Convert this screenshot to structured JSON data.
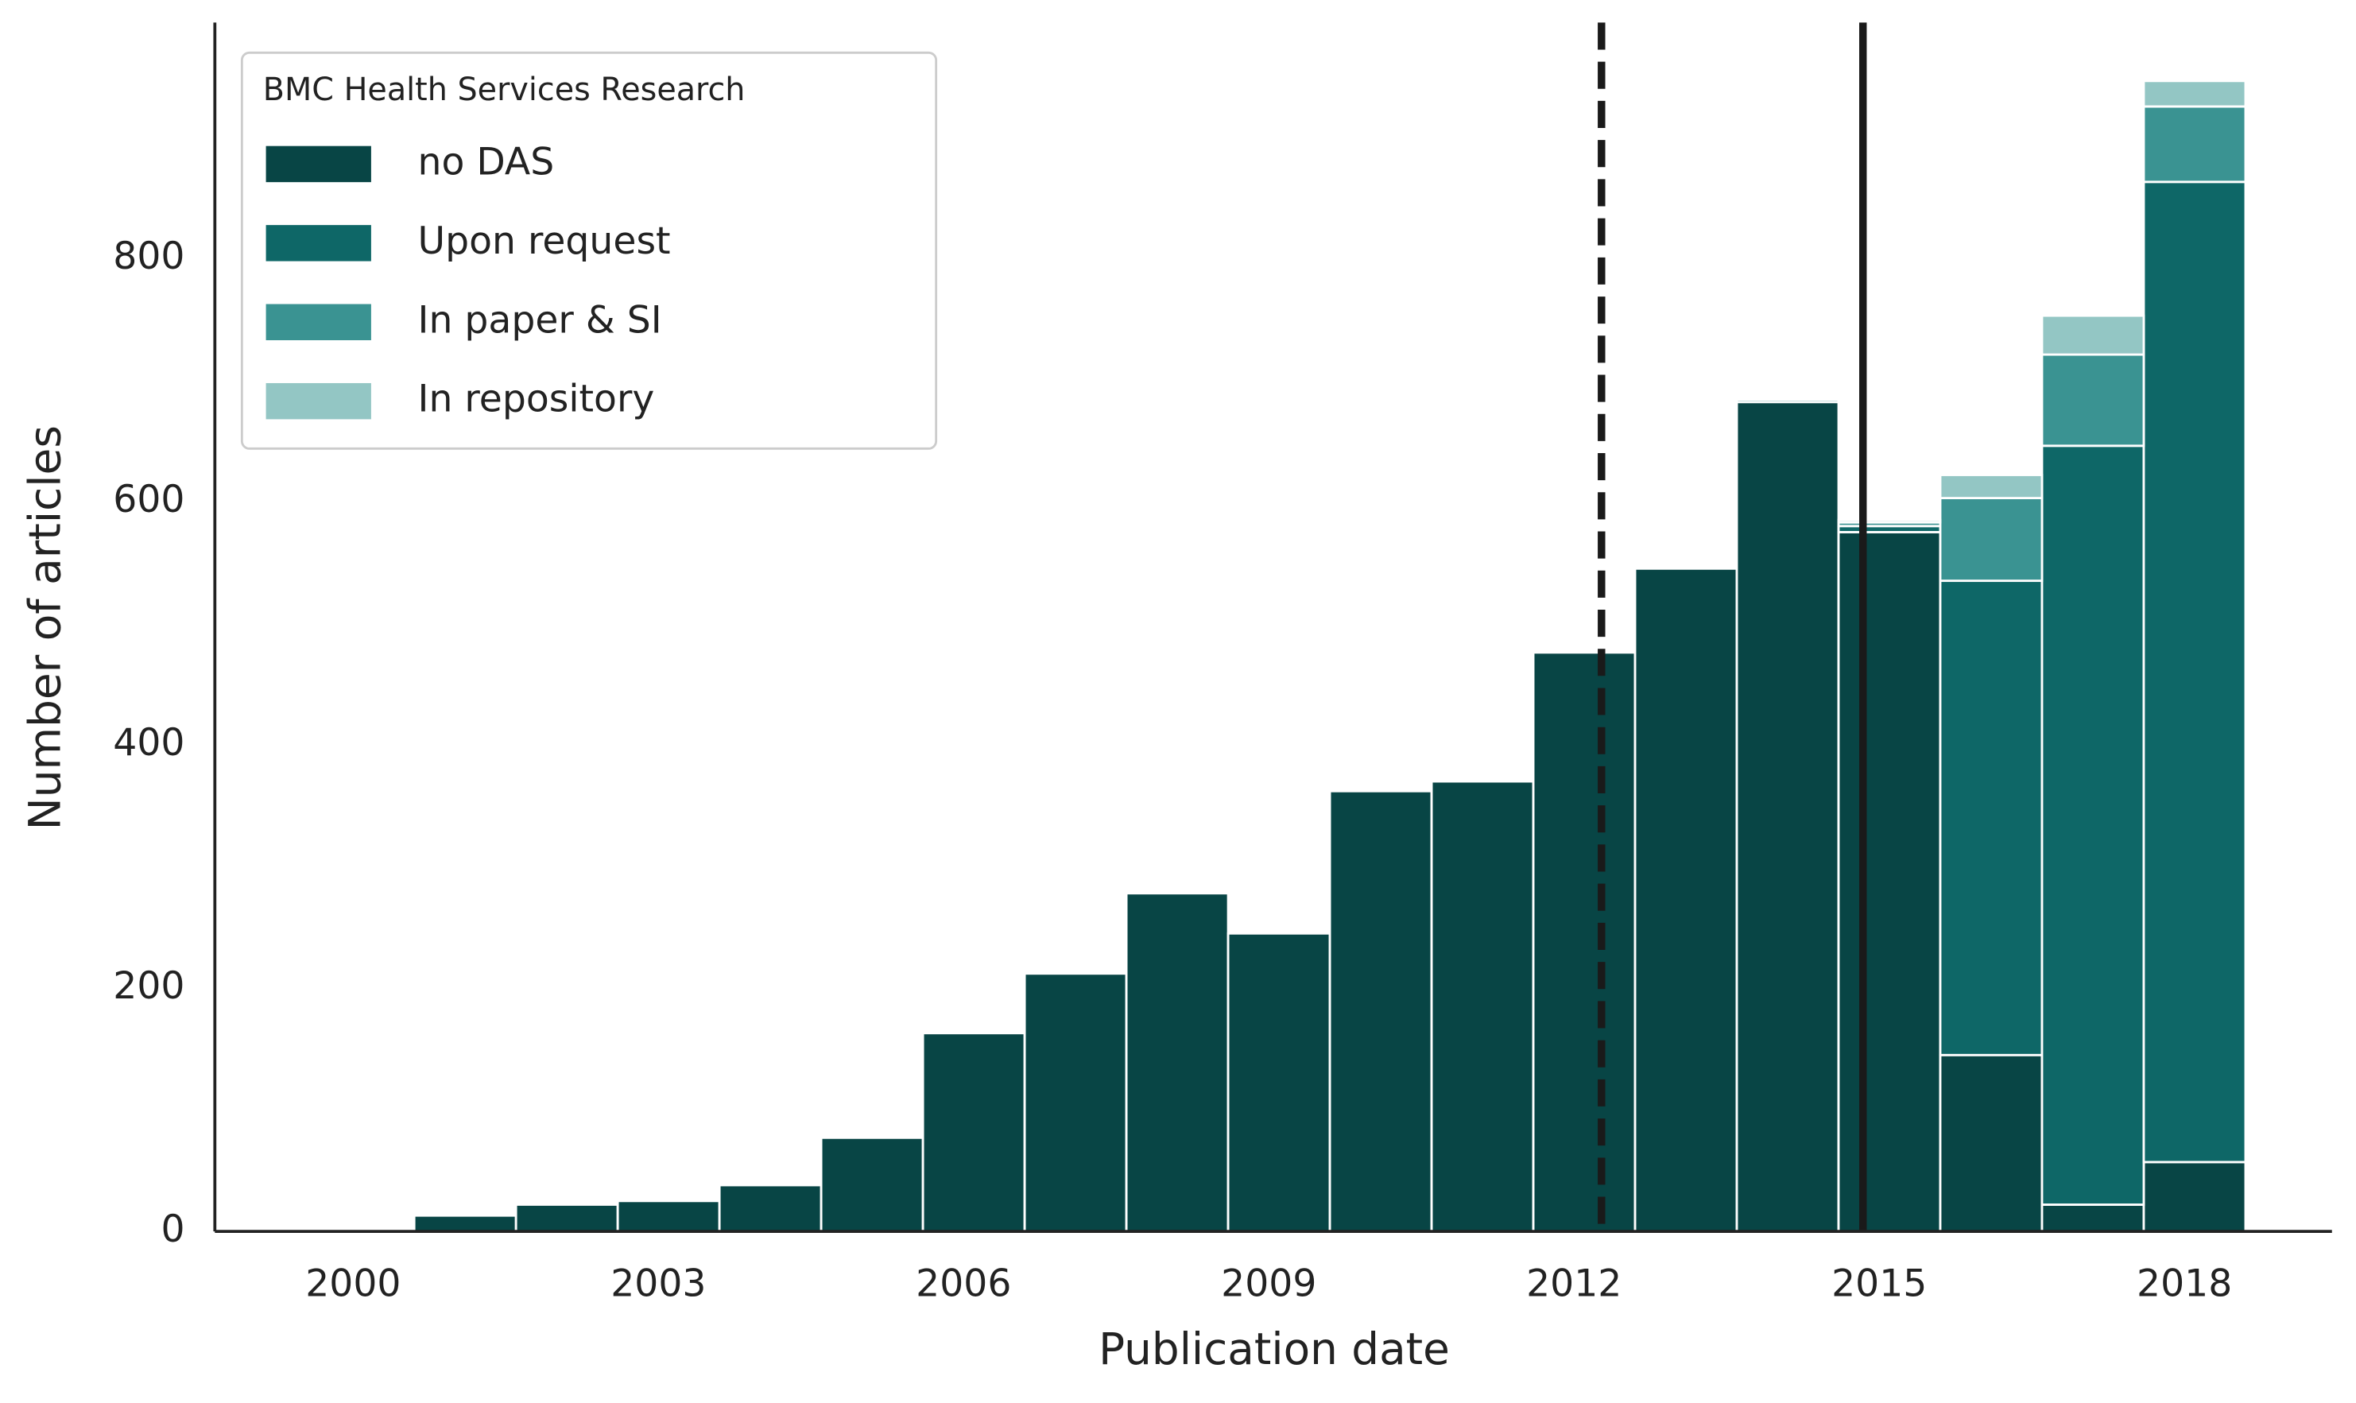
{
  "chart_data": {
    "type": "histogram",
    "stacked": true,
    "xlabel": "Publication date",
    "ylabel": "Number of articles",
    "legend_title": "BMC Health Services Research",
    "legend": "upper left",
    "bins": [
      2000.6,
      2001.6,
      2002.6,
      2003.6,
      2004.6,
      2005.6,
      2006.6,
      2007.6,
      2008.6,
      2009.6,
      2010.6,
      2011.6,
      2012.6,
      2013.6,
      2014.6,
      2015.6,
      2016.6,
      2017.6,
      2018.6
    ],
    "series": [
      {
        "name": "no DAS",
        "color": "#084545",
        "values": [
          13,
          22,
          25,
          38,
          77,
          163,
          212,
          278,
          245,
          362,
          370,
          476,
          545,
          682,
          575,
          145,
          22,
          57
        ]
      },
      {
        "name": "Upon request",
        "color": "#0e6767",
        "values": [
          0,
          0,
          0,
          0,
          0,
          0,
          0,
          0,
          0,
          0,
          0,
          0,
          0,
          2,
          5,
          390,
          624,
          806
        ]
      },
      {
        "name": "In paper & SI",
        "color": "#3a9392",
        "values": [
          0,
          0,
          0,
          0,
          0,
          0,
          0,
          0,
          0,
          0,
          0,
          0,
          0,
          0,
          3,
          68,
          75,
          62
        ]
      },
      {
        "name": "In repository",
        "color": "#93c6c4",
        "values": [
          0,
          0,
          0,
          0,
          0,
          0,
          0,
          0,
          0,
          0,
          0,
          0,
          0,
          0,
          2,
          19,
          32,
          21
        ]
      }
    ],
    "reference_lines": [
      {
        "x": 2012.27,
        "style": "dashed"
      },
      {
        "x": 2014.84,
        "style": "solid"
      }
    ],
    "xlim": [
      1998.64,
      2019.45
    ],
    "xticks": [
      2000,
      2003,
      2006,
      2009,
      2012,
      2015,
      2018
    ],
    "ylim": [
      0,
      994
    ],
    "yticks": [
      0,
      200,
      400,
      600,
      800
    ],
    "grid": false
  }
}
